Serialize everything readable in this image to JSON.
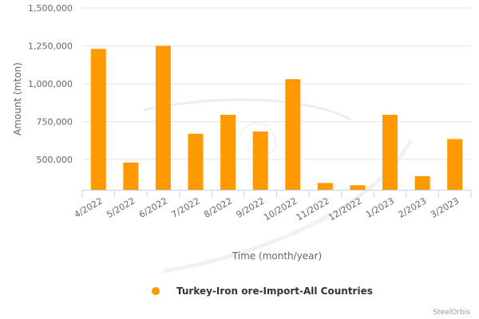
{
  "chart_data": {
    "type": "bar",
    "title": "",
    "xlabel": "Time (month/year)",
    "ylabel": "Amount (mton)",
    "categories": [
      "4/2022",
      "5/2022",
      "6/2022",
      "7/2022",
      "8/2022",
      "9/2022",
      "10/2022",
      "11/2022",
      "12/2022",
      "1/2023",
      "2/2023",
      "3/2023"
    ],
    "series": [
      {
        "name": "Turkey-Iron ore-Import-All Countries",
        "color": "#FF9900",
        "values": [
          1230000,
          480000,
          1250000,
          670000,
          795000,
          685000,
          1030000,
          345000,
          330000,
          795000,
          390000,
          635000
        ]
      }
    ],
    "y_ticks": [
      500000,
      750000,
      1000000,
      1250000,
      1500000
    ],
    "y_tick_labels": [
      "500,000",
      "750,000",
      "1,000,000",
      "1,250,000",
      "1,500,000"
    ],
    "ylim": [
      300000,
      1500000
    ],
    "grid": true,
    "legend_position": "bottom-center"
  },
  "credit": "SteelOrbis"
}
